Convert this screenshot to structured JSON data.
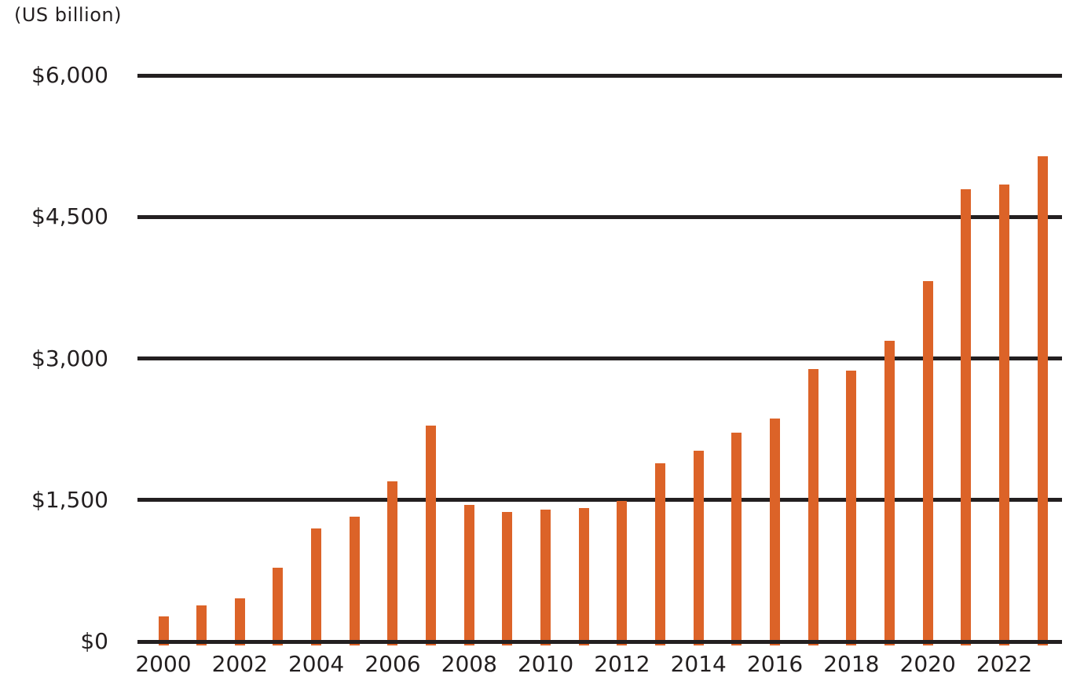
{
  "chart_data": {
    "type": "bar",
    "title": "(US billion)",
    "unit_label": "(US billion)",
    "xlabel": "",
    "ylabel": "US billion",
    "categories": [
      "2000",
      "2001",
      "2002",
      "2003",
      "2004",
      "2005",
      "2006",
      "2007",
      "2008",
      "2009",
      "2010",
      "2011",
      "2012",
      "2013",
      "2014",
      "2015",
      "2016",
      "2017",
      "2018",
      "2019",
      "2020",
      "2021",
      "2022",
      "2023"
    ],
    "values": [
      270,
      380,
      455,
      780,
      1195,
      1320,
      1700,
      2290,
      1450,
      1370,
      1400,
      1415,
      1490,
      1890,
      2025,
      2215,
      2360,
      2890,
      2875,
      3185,
      3820,
      4795,
      4845,
      5140
    ],
    "ylim": [
      0,
      6000
    ],
    "y_ticks": [
      0,
      1500,
      3000,
      4500,
      6000
    ],
    "y_tick_labels": [
      "$0",
      "$1,500",
      "$3,000",
      "$4,500",
      "$6,000"
    ],
    "x_tick_labels": [
      "2000",
      "2002",
      "2004",
      "2006",
      "2008",
      "2010",
      "2012",
      "2014",
      "2016",
      "2018",
      "2020",
      "2022"
    ],
    "x_tick_interval": 2,
    "grid": "horizontal-only",
    "legend": "none",
    "colors": {
      "bar": "#dc6328",
      "axis": "#231f20",
      "text": "#231f20",
      "background": "#ffffff"
    }
  }
}
